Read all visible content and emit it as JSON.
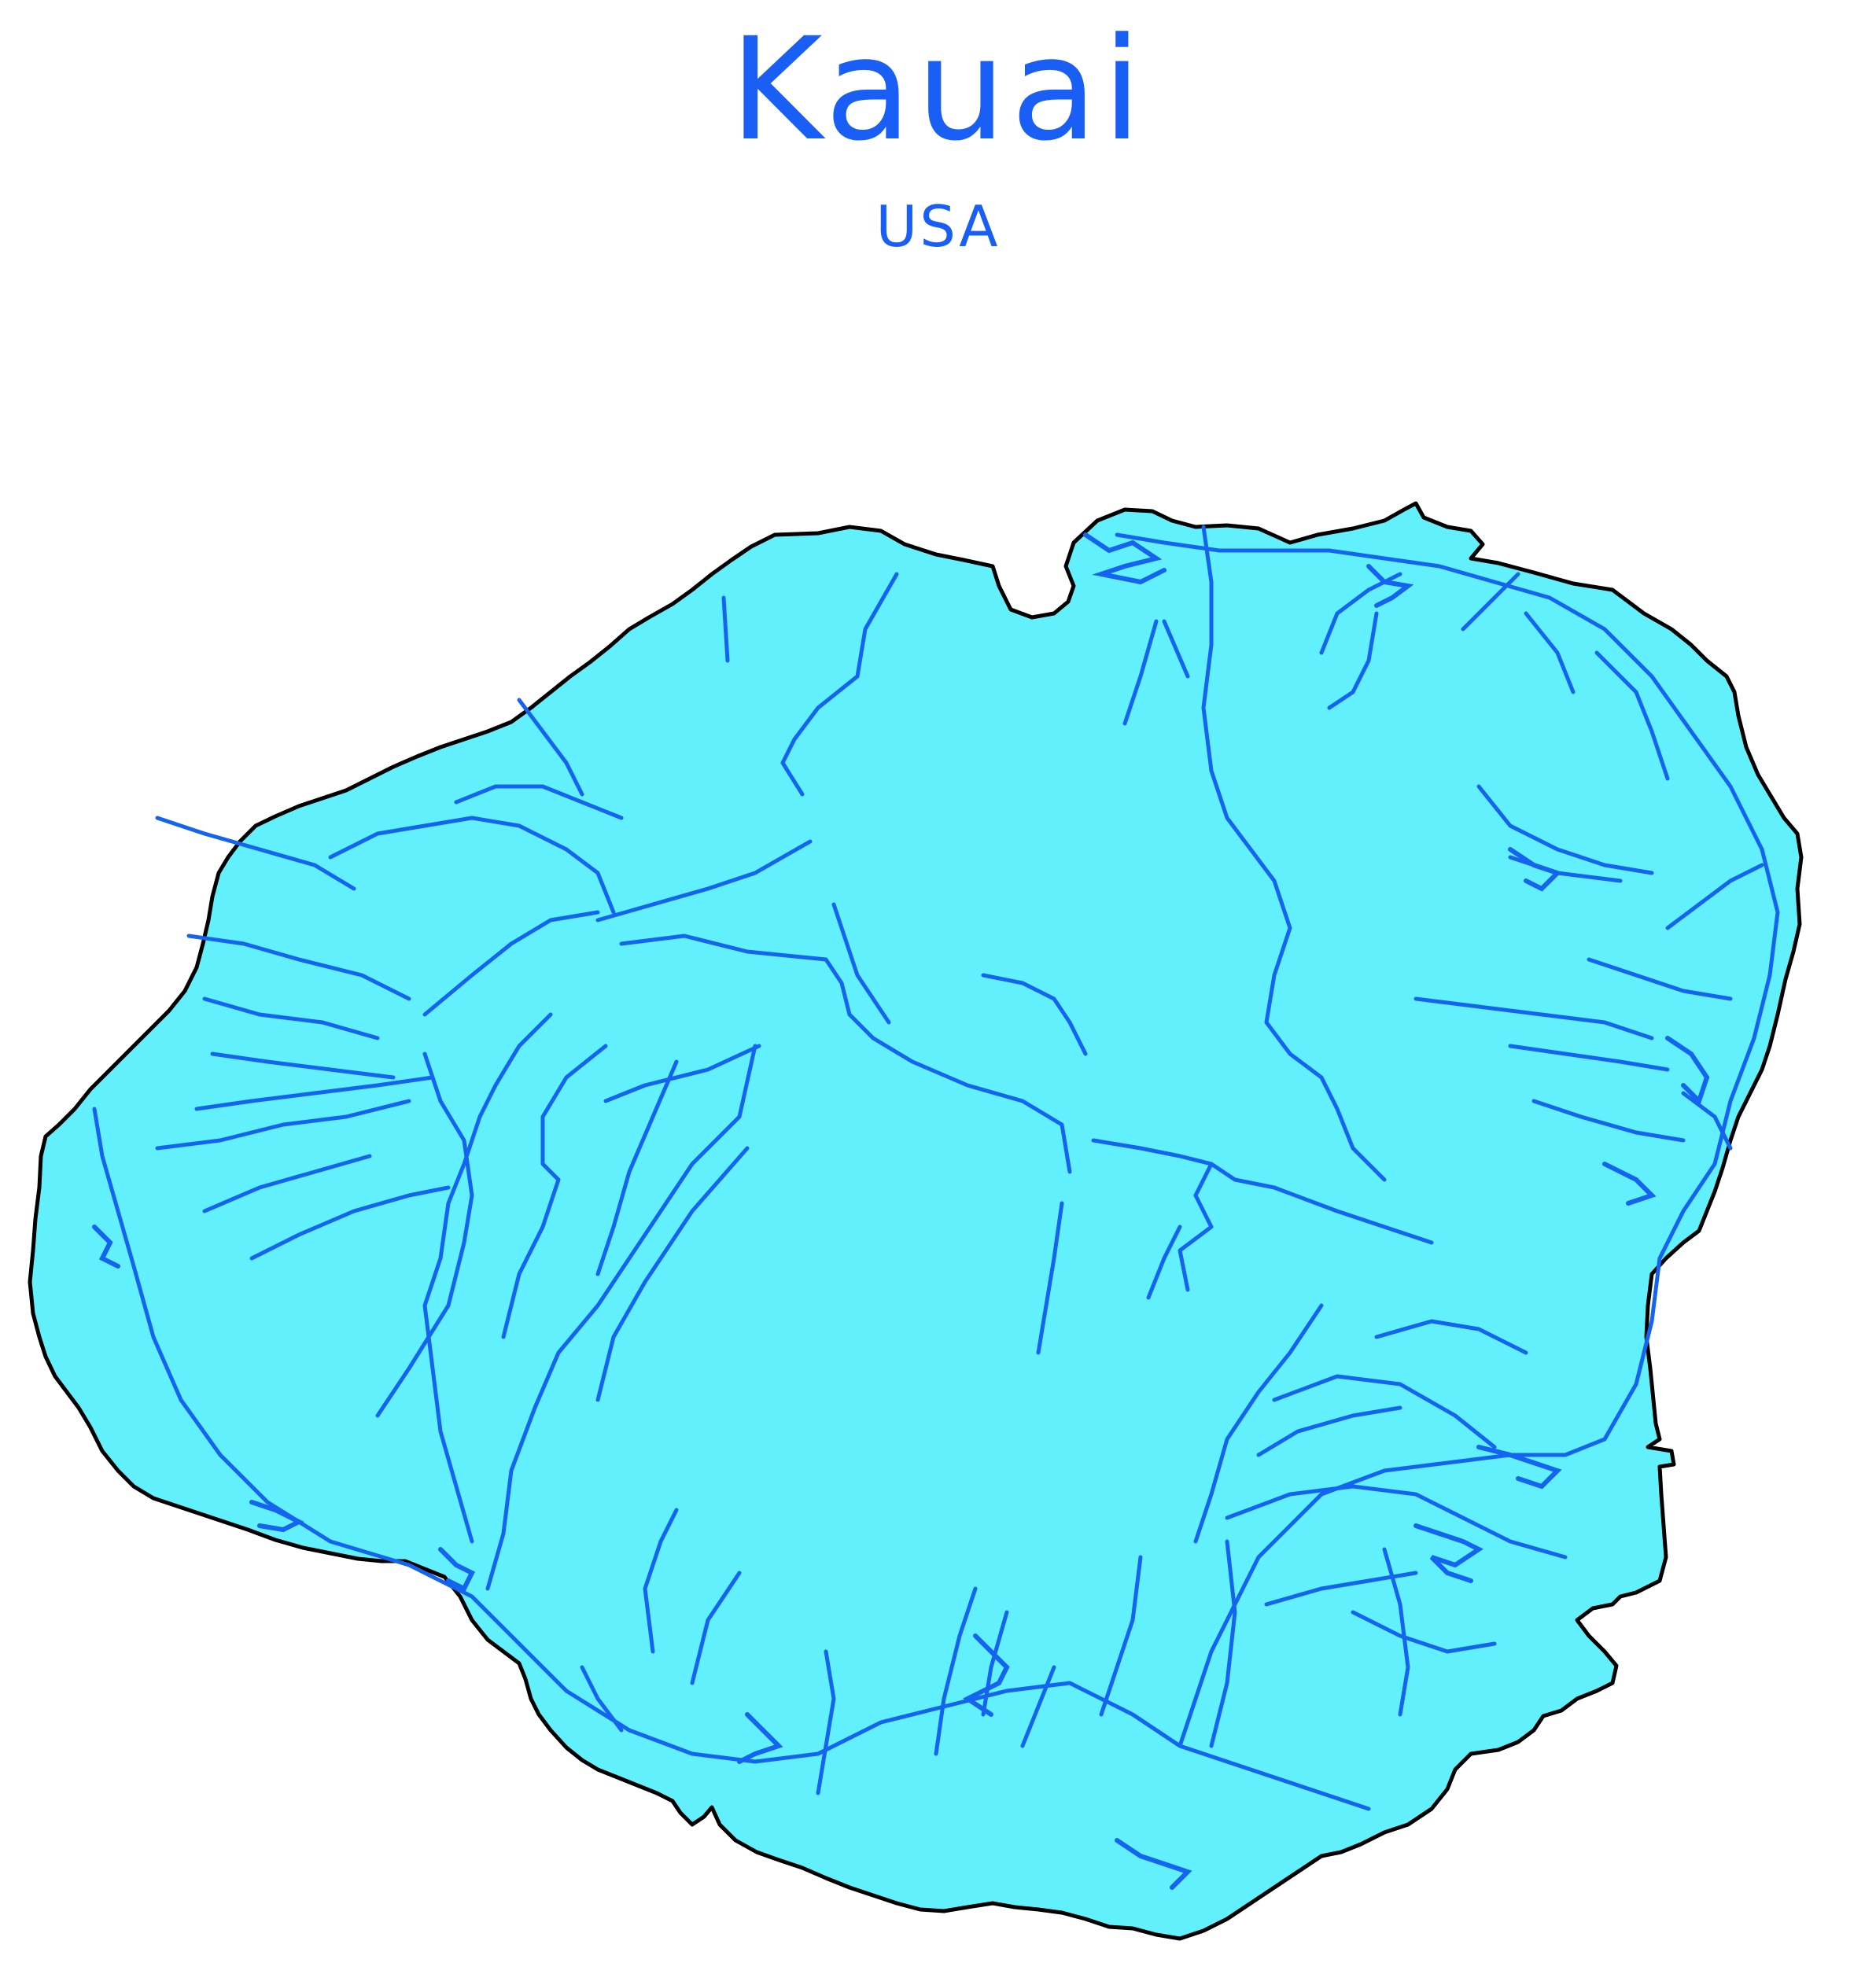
{
  "map": {
    "title": "Kauai",
    "subtitle": "USA",
    "colors": {
      "land": "#62f0fd",
      "coastline": "#000000",
      "roads": "#1464f0",
      "text": "#1a5ff5",
      "background": "#ffffff"
    }
  }
}
